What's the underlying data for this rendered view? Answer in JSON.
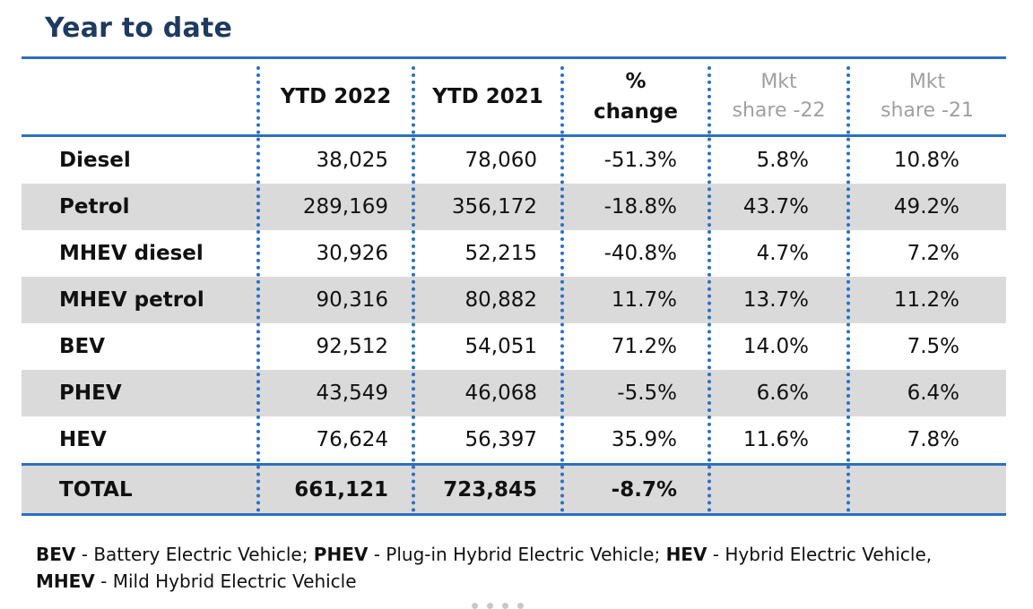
{
  "title": "Year to date",
  "chart_data": {
    "type": "table",
    "columns": [
      "",
      "YTD 2022",
      "YTD 2021",
      "% change",
      "Mkt share -22",
      "Mkt share -21"
    ],
    "header": {
      "ytd2022": "YTD 2022",
      "ytd2021": "YTD 2021",
      "change_1": "%",
      "change_2": "change",
      "share22_1": "Mkt",
      "share22_2": "share -22",
      "share21_1": "Mkt",
      "share21_2": "share -21"
    },
    "rows": [
      {
        "fuel": "Diesel",
        "ytd2022": "38,025",
        "ytd2021": "78,060",
        "change": "-51.3%",
        "share22": "5.8%",
        "share21": "10.8%"
      },
      {
        "fuel": "Petrol",
        "ytd2022": "289,169",
        "ytd2021": "356,172",
        "change": "-18.8%",
        "share22": "43.7%",
        "share21": "49.2%"
      },
      {
        "fuel": "MHEV diesel",
        "ytd2022": "30,926",
        "ytd2021": "52,215",
        "change": "-40.8%",
        "share22": "4.7%",
        "share21": "7.2%"
      },
      {
        "fuel": "MHEV petrol",
        "ytd2022": "90,316",
        "ytd2021": "80,882",
        "change": "11.7%",
        "share22": "13.7%",
        "share21": "11.2%"
      },
      {
        "fuel": "BEV",
        "ytd2022": "92,512",
        "ytd2021": "54,051",
        "change": "71.2%",
        "share22": "14.0%",
        "share21": "7.5%"
      },
      {
        "fuel": "PHEV",
        "ytd2022": "43,549",
        "ytd2021": "46,068",
        "change": "-5.5%",
        "share22": "6.6%",
        "share21": "6.4%"
      },
      {
        "fuel": "HEV",
        "ytd2022": "76,624",
        "ytd2021": "56,397",
        "change": "35.9%",
        "share22": "11.6%",
        "share21": "7.8%"
      }
    ],
    "total": {
      "fuel": "TOTAL",
      "ytd2022": "661,121",
      "ytd2021": "723,845",
      "change": "-8.7%",
      "share22": "",
      "share21": ""
    }
  },
  "footnote": {
    "bev_abbr": "BEV",
    "bev_text": " - Battery Electric Vehicle; ",
    "phev_abbr": "PHEV",
    "phev_text": " - Plug-in Hybrid Electric Vehicle; ",
    "hev_abbr": "HEV",
    "hev_text": " - Hybrid Electric Vehicle,",
    "mhev_abbr": "MHEV",
    "mhev_text": " - Mild Hybrid Electric Vehicle"
  },
  "colors": {
    "accent": "#2d6fc1",
    "title": "#1f3a5f",
    "row_shade": "#dadada",
    "muted_header": "#a0a0a0"
  }
}
